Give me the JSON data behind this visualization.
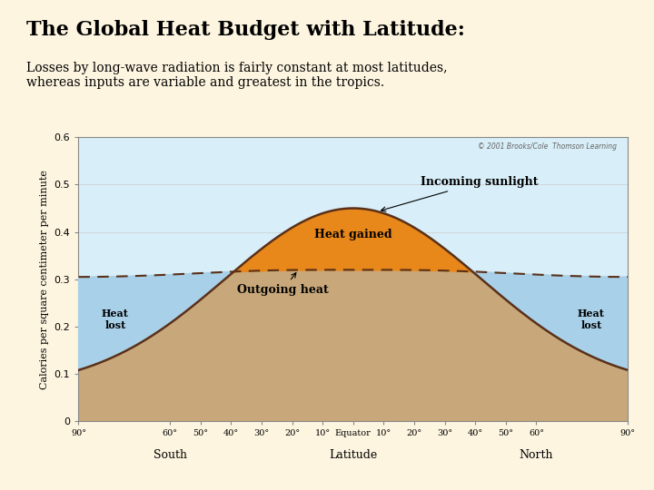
{
  "title": "The Global Heat Budget with Latitude:",
  "subtitle_line1": "Losses by long-wave radiation is fairly constant at most latitudes,",
  "subtitle_line2": "whereas inputs are variable and greatest in the tropics.",
  "ylabel": "Calories per square centimeter per minute",
  "ylim": [
    0,
    0.6
  ],
  "background_color": "#fdf5e0",
  "plot_bg_color": "#d8eef8",
  "outgoing_fill_color": "#c8a87a",
  "heat_gained_color": "#e8871a",
  "heat_lost_color": "#a8d0e8",
  "outgoing_line_color": "#5a3018",
  "incoming_line_color": "#5a3018",
  "copyright_text": "© 2001 Brooks/Cole  Thomson Learning",
  "south_label": "South",
  "latitude_label": "Latitude",
  "north_label": "North",
  "incoming_label": "Incoming sunlight",
  "outgoing_label": "Outgoing heat",
  "heat_gained_label": "Heat gained",
  "heat_lost_label": "Heat\nlost"
}
